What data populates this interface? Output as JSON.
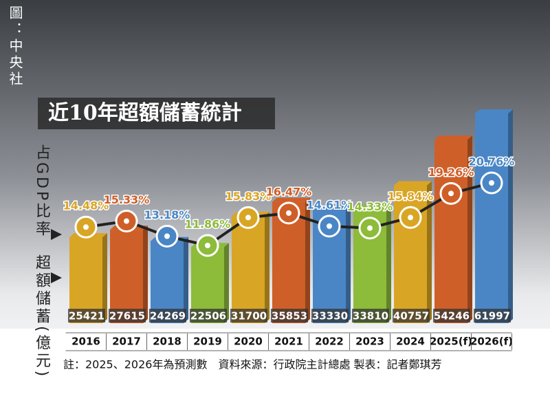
{
  "chart_data": {
    "type": "bar",
    "title": "近10年超額儲蓄統計",
    "source": "圖：中央社",
    "footnote": "註：2025、2026年為預測數　資料來源：行政院主計總處 製表：記者鄭琪芳",
    "categories": [
      "2016",
      "2017",
      "2018",
      "2019",
      "2020",
      "2021",
      "2022",
      "2023",
      "2024",
      "2025(f)",
      "2026(f)"
    ],
    "series": [
      {
        "name": "超額儲蓄(億元)",
        "type": "bar",
        "colors": [
          "#d9a524",
          "#cf5f28",
          "#4a86c5",
          "#8dbb3a",
          "#d9a524",
          "#cf5f28",
          "#4a86c5",
          "#8dbb3a",
          "#d9a524",
          "#cf5f28",
          "#4a86c5"
        ],
        "values": [
          25421,
          27615,
          24269,
          22506,
          31700,
          35853,
          33330,
          33810,
          40757,
          54246,
          61997
        ]
      },
      {
        "name": "占GDP比率",
        "type": "line",
        "color": "#222222",
        "values": [
          14.48,
          15.33,
          13.18,
          11.86,
          15.83,
          16.47,
          14.61,
          14.33,
          15.84,
          19.26,
          20.76
        ],
        "value_labels": [
          "14.48%",
          "15.33%",
          "13.18%",
          "11.86%",
          "15.83%",
          "16.47%",
          "14.61%",
          "14.33%",
          "15.84%",
          "19.26%",
          "20.76%"
        ]
      }
    ]
  }
}
